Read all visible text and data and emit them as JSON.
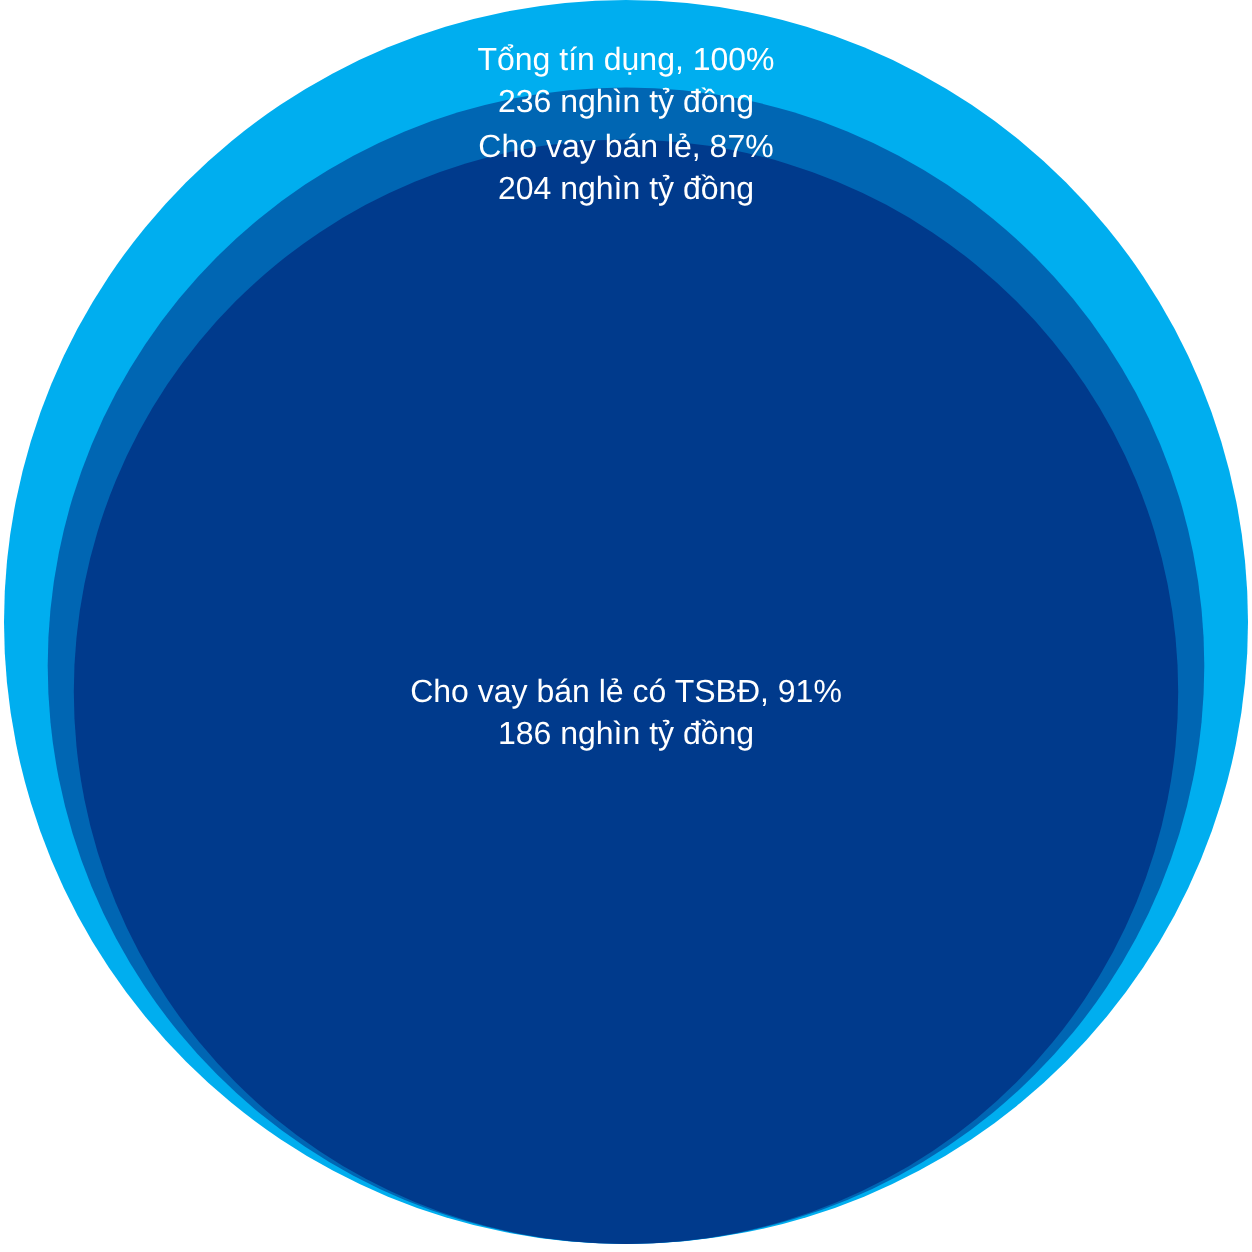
{
  "chart_data": {
    "type": "other",
    "categories": [
      "Tổng tín dụng, 100%",
      "Cho vay bán lẻ, 87%",
      "Cho vay bán lẻ có TSBĐ, 91%"
    ],
    "values": [
      236,
      204,
      186
    ],
    "value_labels": [
      "236 nghìn tỷ đồng",
      "204 nghìn tỷ đồng",
      "186 nghìn tỷ đồng"
    ],
    "colors": [
      "#00aeef",
      "#0066b3",
      "#003a8c"
    ]
  }
}
